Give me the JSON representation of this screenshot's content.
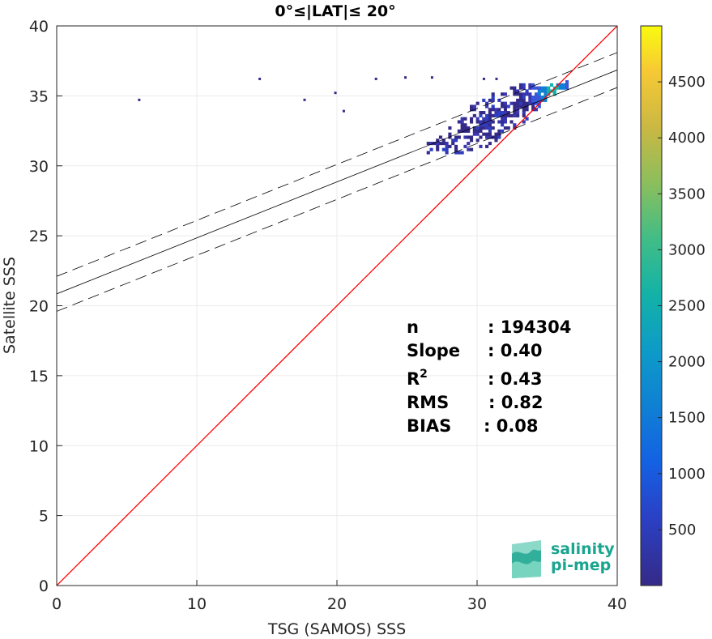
{
  "chart_data": {
    "type": "heatmap",
    "title": "0°≤|LAT|≤ 20°",
    "xlabel": "TSG (SAMOS) SSS",
    "ylabel": "Satellite SSS",
    "xlim": [
      0,
      40
    ],
    "ylim": [
      0,
      40
    ],
    "xticks": [
      "0",
      "10",
      "20",
      "30",
      "40"
    ],
    "yticks": [
      "0",
      "5",
      "10",
      "15",
      "20",
      "25",
      "30",
      "35",
      "40"
    ],
    "grid": true,
    "colorbar": {
      "range": [
        0,
        5000
      ],
      "ticks": [
        "500",
        "1000",
        "1500",
        "2000",
        "2500",
        "3000",
        "3500",
        "4000",
        "4500"
      ],
      "colormap": "parula"
    },
    "lines": [
      {
        "kind": "identity",
        "color": "#ff0000",
        "points": [
          [
            0,
            0
          ],
          [
            40,
            40
          ]
        ]
      },
      {
        "kind": "regression",
        "color": "#000000",
        "style": "solid",
        "points": [
          [
            0,
            20.85
          ],
          [
            40,
            36.85
          ]
        ]
      },
      {
        "kind": "regression-upper",
        "color": "#000000",
        "style": "dashed",
        "points": [
          [
            0,
            22.1
          ],
          [
            40,
            38.1
          ]
        ]
      },
      {
        "kind": "regression-lower",
        "color": "#000000",
        "style": "dashed",
        "points": [
          [
            0,
            19.6
          ],
          [
            40,
            35.6
          ]
        ]
      }
    ],
    "stats": [
      {
        "label": "n",
        "value": ": 194304"
      },
      {
        "label": "Slope",
        "value": ": 0.40"
      },
      {
        "label": "R",
        "sup": "2",
        "value": ": 0.43"
      },
      {
        "label": "RMS",
        "value": ": 0.82"
      },
      {
        "label": "BIAS",
        "value": ": 0.08"
      }
    ],
    "outliers": [
      {
        "x": 5.8,
        "y": 34.6
      },
      {
        "x": 14.4,
        "y": 36.1
      },
      {
        "x": 17.6,
        "y": 34.6
      },
      {
        "x": 19.8,
        "y": 35.1
      },
      {
        "x": 20.4,
        "y": 33.8
      },
      {
        "x": 22.7,
        "y": 36.1
      },
      {
        "x": 24.8,
        "y": 36.2
      },
      {
        "x": 26.7,
        "y": 36.2
      },
      {
        "x": 30.4,
        "y": 36.1
      },
      {
        "x": 31.3,
        "y": 36.1
      }
    ],
    "density": {
      "ridge_x": [
        27.0,
        36.3
      ],
      "ridge_y": [
        31.3,
        35.8
      ],
      "peak": {
        "x": 35.3,
        "y": 35.2,
        "count": 3200
      }
    }
  },
  "logo": {
    "line1": "salinity",
    "line2": "pi-mep",
    "color": "#1aa58f"
  },
  "colors": {
    "identity": "#ff0000",
    "text": "#262626",
    "grid": "#ebebeb"
  }
}
